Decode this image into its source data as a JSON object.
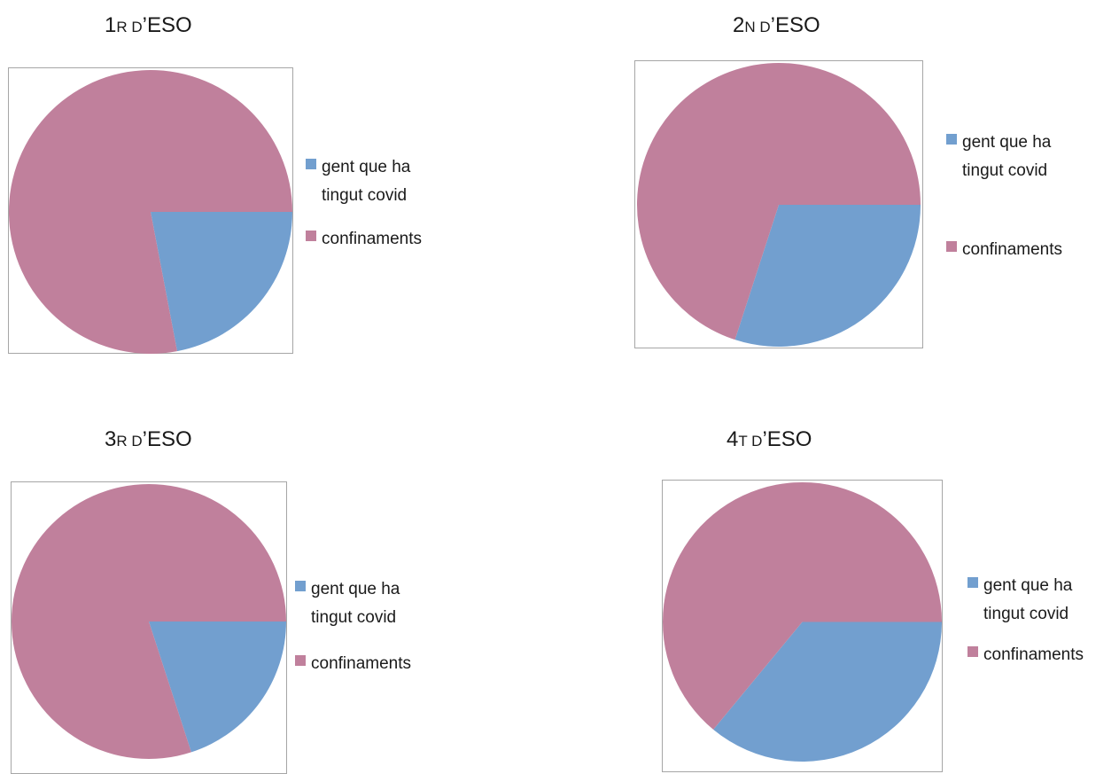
{
  "colors": {
    "covid": "#729fcf",
    "confinaments": "#c0809c",
    "frame": "#a6a6a6"
  },
  "chart_data": [
    {
      "type": "pie",
      "title_main": "1",
      "title_small": "R D",
      "title_end": "’ESO",
      "labels": [
        "gent que ha tingut covid",
        "confinaments"
      ],
      "values": [
        22,
        78
      ]
    },
    {
      "type": "pie",
      "title_main": "2",
      "title_small": "N D",
      "title_end": "’ESO",
      "labels": [
        "gent que ha tingut covid",
        "confinaments"
      ],
      "values": [
        30,
        70
      ]
    },
    {
      "type": "pie",
      "title_main": "3",
      "title_small": "R D",
      "title_end": "’ESO",
      "labels": [
        "gent que ha tingut covid",
        "confinaments"
      ],
      "values": [
        20,
        80
      ]
    },
    {
      "type": "pie",
      "title_main": "4",
      "title_small": "T D",
      "title_end": "’ESO",
      "labels": [
        "gent que ha tingut covid",
        "confinaments"
      ],
      "values": [
        36,
        64
      ]
    }
  ],
  "legend": {
    "covid_label": "gent que ha tingut covid",
    "confinaments_label": "confinaments"
  }
}
